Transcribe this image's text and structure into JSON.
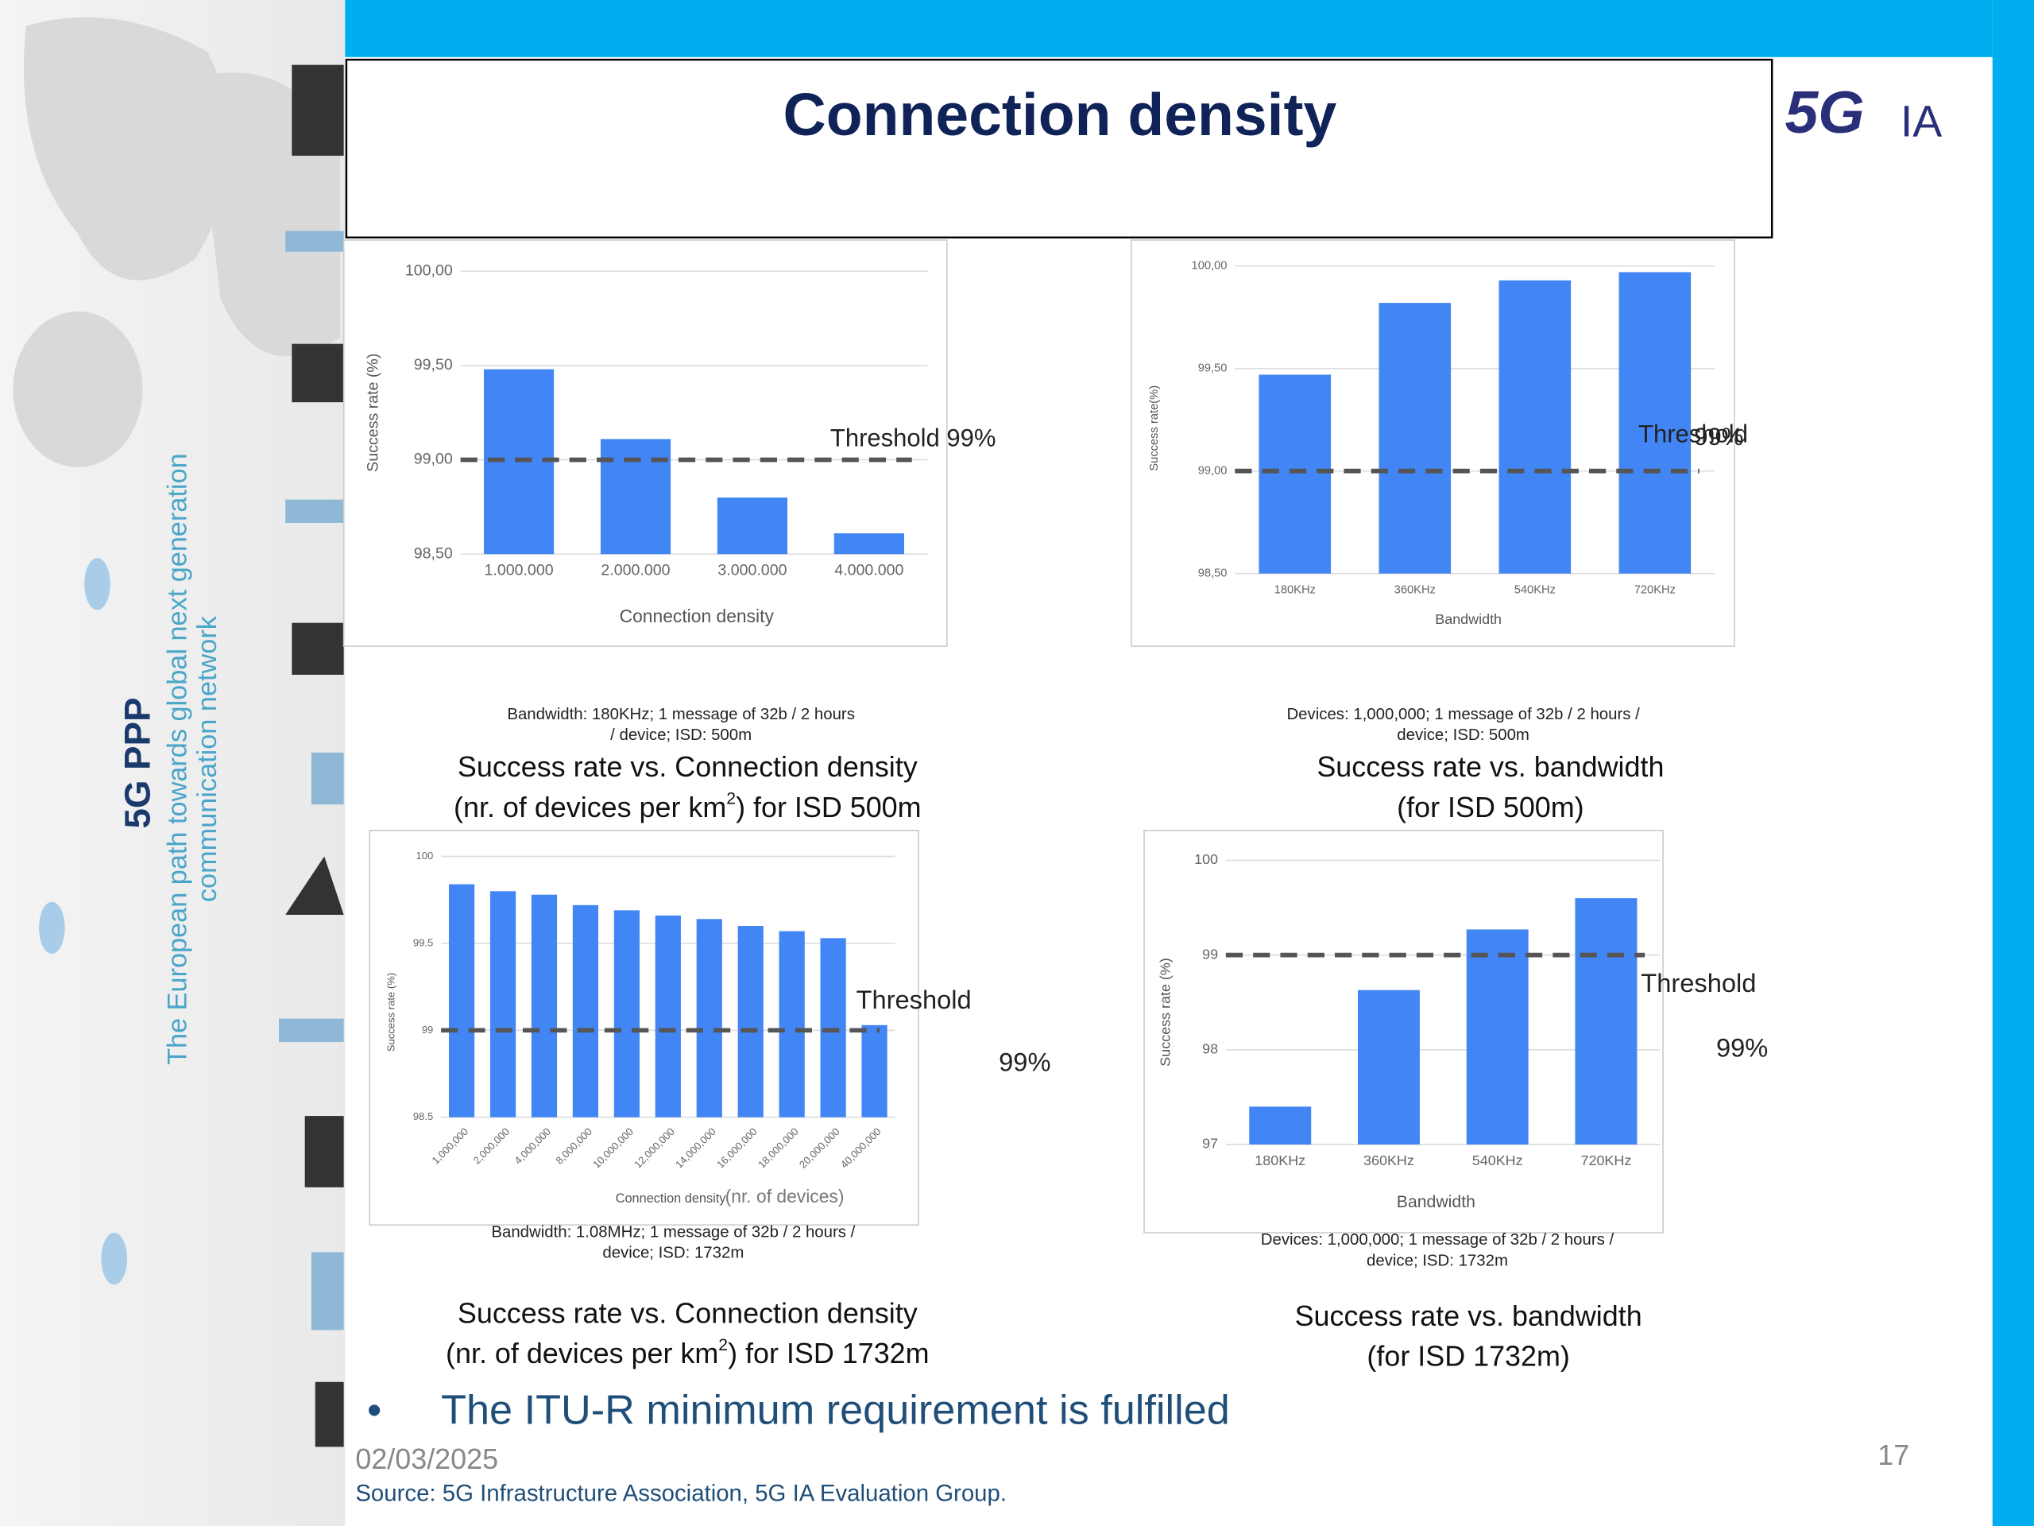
{
  "title": "Connection density",
  "logo": {
    "mark": "5G",
    "text": "IA"
  },
  "side": {
    "name": "5G PPP",
    "line1": "The European path towards global next generation",
    "line2": "communication network"
  },
  "bullet": "The ITU-R minimum requirement is fulfilled",
  "date": "02/03/2025",
  "page_number": "17",
  "source": "Source: 5G Infrastructure Association, 5G IA Evaluation Group.",
  "chart_data": [
    {
      "type": "bar",
      "categories": [
        "1.000.000",
        "2.000.000",
        "3.000.000",
        "4.000.000"
      ],
      "values": [
        99.48,
        99.11,
        98.8,
        98.61
      ],
      "color": "#4285f4",
      "threshold": 99,
      "ylim": [
        98.5,
        100
      ],
      "yticks": [
        {
          "value": 98.5,
          "label": "98,50"
        },
        {
          "value": 99,
          "label": "99,00"
        },
        {
          "value": 99.5,
          "label": "99,50"
        },
        {
          "value": 100,
          "label": "100,00"
        }
      ],
      "grid": true,
      "y_label": "Success rate (%)",
      "x_label": "Connection density",
      "annotations": [
        "Threshold 99%"
      ],
      "note": [
        "Bandwidth:  180KHz;  1 message  of 32b / 2 hours",
        "/ device;  ISD: 500m"
      ],
      "caption": [
        [
          "Success rate vs. Connection density"
        ],
        [
          "(nr. of devices per km",
          "2",
          ") for ISD 500m"
        ]
      ]
    },
    {
      "type": "bar",
      "categories": [
        "180KHz",
        "360KHz",
        "540KHz",
        "720KHz"
      ],
      "values": [
        99.47,
        99.82,
        99.93,
        99.97
      ],
      "color": "#4285f4",
      "threshold": 99,
      "ylim": [
        98.5,
        100
      ],
      "yticks": [
        {
          "value": 98.5,
          "label": "98,50"
        },
        {
          "value": 99,
          "label": "99,00"
        },
        {
          "value": 99.5,
          "label": "99,50"
        },
        {
          "value": 100,
          "label": "100,00"
        }
      ],
      "grid": true,
      "y_label": "Success rate(%)",
      "x_label": "Bandwidth",
      "annotations": [
        "Threshold",
        "99%"
      ],
      "note": [
        "Devices:  1,000,000;  1 message  of 32b / 2 hours /",
        "device;  ISD: 500m"
      ],
      "caption": [
        [
          "Success rate vs. bandwidth"
        ],
        [
          "(for ISD 500m)"
        ]
      ]
    },
    {
      "type": "bar",
      "categories": [
        "1,000,000",
        "2,000,000",
        "4,000,000",
        "8,000,000",
        "10,000,000",
        "12,000,000",
        "14,000,000",
        "16,000,000",
        "18,000,000",
        "20,000,000",
        "40,000,000"
      ],
      "values": [
        99.84,
        99.8,
        99.78,
        99.72,
        99.69,
        99.66,
        99.64,
        99.6,
        99.57,
        99.53,
        99.03
      ],
      "color": "#4285f4",
      "threshold": 99,
      "ylim": [
        98.5,
        100
      ],
      "yticks": [
        98.5,
        99,
        99.5,
        100
      ],
      "grid": true,
      "y_label": "Success rate (%)",
      "x_label": "Connection density",
      "annotations": [
        "(nr. of devices)",
        "Threshold",
        "99%"
      ],
      "note": [
        "Bandwidth:  1.08MHz;  1 message  of 32b / 2 hours /",
        "device;  ISD: 1732m"
      ],
      "caption": [
        [
          "Success rate vs. Connection density"
        ],
        [
          "(nr. of devices per km",
          "2",
          ") for ISD 1732m"
        ]
      ]
    },
    {
      "type": "bar",
      "categories": [
        "180KHz",
        "360KHz",
        "540KHz",
        "720KHz"
      ],
      "values": [
        97.4,
        98.63,
        99.27,
        99.6
      ],
      "color": "#4285f4",
      "threshold": 99,
      "ylim": [
        97,
        100
      ],
      "yticks": [
        97,
        98,
        99,
        100
      ],
      "grid": true,
      "y_label": "Success rate (%)",
      "x_label": "Bandwidth",
      "annotations": [
        "Threshold",
        "99%"
      ],
      "note": [
        "Devices:  1,000,000;  1 message  of 32b / 2 hours /",
        "device;  ISD: 1732m"
      ],
      "caption": [
        [
          "Success rate vs. bandwidth"
        ],
        [
          "(for ISD 1732m)"
        ]
      ]
    }
  ]
}
